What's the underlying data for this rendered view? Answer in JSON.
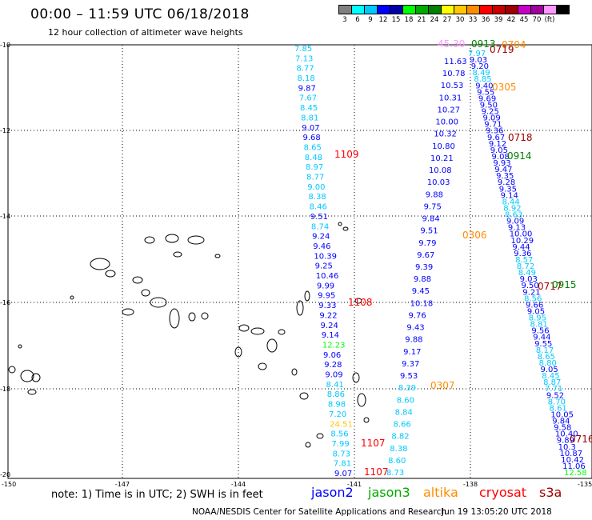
{
  "header": {
    "title": "00:00 – 11:59 UTC 06/18/2018",
    "subtitle": "12 hour collection of altimeter wave heights"
  },
  "colorbar": {
    "colors": [
      "#808080",
      "#00ffff",
      "#00c8ff",
      "#0000ff",
      "#0000aa",
      "#00ff00",
      "#00aa00",
      "#008000",
      "#ffff00",
      "#ffc800",
      "#ff8c00",
      "#ff0000",
      "#c80000",
      "#a00000",
      "#c800c8",
      "#a000a0",
      "#ff96ff",
      "#000000"
    ],
    "labels": [
      "3",
      "6",
      "9",
      "12",
      "15",
      "18",
      "21",
      "24",
      "27",
      "30",
      "33",
      "36",
      "39",
      "42",
      "45",
      "70",
      "(ft)"
    ]
  },
  "axes": {
    "lat_labels": [
      "-10",
      "-12",
      "-14",
      "-16",
      "-18",
      "-20"
    ],
    "lon_labels": [
      "-150",
      "-147",
      "-144",
      "-141",
      "-138",
      "-135"
    ],
    "lon_label_bottom_left": "-150",
    "lon_label_bottom_right": "-135"
  },
  "tracks": {
    "track_a": [
      {
        "v": "7.85",
        "c": "#00c8ff"
      },
      {
        "v": "7.13",
        "c": "#00c8ff"
      },
      {
        "v": "8.77",
        "c": "#00c8ff"
      },
      {
        "v": "8.18",
        "c": "#00c8ff"
      },
      {
        "v": "9.87",
        "c": "#0000ff"
      },
      {
        "v": "7.67",
        "c": "#00c8ff"
      },
      {
        "v": "8.45",
        "c": "#00c8ff"
      },
      {
        "v": "8.81",
        "c": "#00c8ff"
      },
      {
        "v": "9.07",
        "c": "#0000ff"
      },
      {
        "v": "9.68",
        "c": "#0000ff"
      },
      {
        "v": "8.65",
        "c": "#00c8ff"
      },
      {
        "v": "8.48",
        "c": "#00c8ff"
      },
      {
        "v": "8.97",
        "c": "#00c8ff"
      },
      {
        "v": "8.77",
        "c": "#00c8ff"
      },
      {
        "v": "9.00",
        "c": "#00c8ff"
      },
      {
        "v": "8.38",
        "c": "#00c8ff"
      },
      {
        "v": "8.46",
        "c": "#00c8ff"
      },
      {
        "v": "9.51",
        "c": "#0000ff"
      },
      {
        "v": "8.74",
        "c": "#00c8ff"
      },
      {
        "v": "9.24",
        "c": "#0000ff"
      },
      {
        "v": "9.46",
        "c": "#0000ff"
      },
      {
        "v": "10.39",
        "c": "#0000ff"
      },
      {
        "v": "9.25",
        "c": "#0000ff"
      },
      {
        "v": "10.46",
        "c": "#0000ff"
      },
      {
        "v": "9.99",
        "c": "#0000ff"
      },
      {
        "v": "9.95",
        "c": "#0000ff"
      },
      {
        "v": "9.33",
        "c": "#0000ff"
      },
      {
        "v": "9.22",
        "c": "#0000ff"
      },
      {
        "v": "9.24",
        "c": "#0000ff"
      },
      {
        "v": "9.14",
        "c": "#0000ff"
      },
      {
        "v": "12.23",
        "c": "#00ff00"
      },
      {
        "v": "9.06",
        "c": "#0000ff"
      },
      {
        "v": "9.28",
        "c": "#0000ff"
      },
      {
        "v": "9.09",
        "c": "#0000ff"
      },
      {
        "v": "8.41",
        "c": "#00c8ff"
      },
      {
        "v": "8.86",
        "c": "#00c8ff"
      },
      {
        "v": "8.98",
        "c": "#00c8ff"
      },
      {
        "v": "7.20",
        "c": "#00c8ff"
      },
      {
        "v": "24.51",
        "c": "#ffc800"
      },
      {
        "v": "8.56",
        "c": "#00c8ff"
      },
      {
        "v": "7.99",
        "c": "#00c8ff"
      },
      {
        "v": "8.73",
        "c": "#00c8ff"
      },
      {
        "v": "7.81",
        "c": "#00c8ff"
      },
      {
        "v": "9.07",
        "c": "#0000ff"
      }
    ],
    "track_b": [
      {
        "v": "11.63",
        "c": "#0000ff"
      },
      {
        "v": "10.78",
        "c": "#0000ff"
      },
      {
        "v": "10.53",
        "c": "#0000ff"
      },
      {
        "v": "10.31",
        "c": "#0000ff"
      },
      {
        "v": "10.27",
        "c": "#0000ff"
      },
      {
        "v": "10.00",
        "c": "#0000ff"
      },
      {
        "v": "10.32",
        "c": "#0000ff"
      },
      {
        "v": "10.80",
        "c": "#0000ff"
      },
      {
        "v": "10.21",
        "c": "#0000ff"
      },
      {
        "v": "10.08",
        "c": "#0000ff"
      },
      {
        "v": "10.03",
        "c": "#0000ff"
      },
      {
        "v": "9.88",
        "c": "#0000ff"
      },
      {
        "v": "9.75",
        "c": "#0000ff"
      },
      {
        "v": "9.84",
        "c": "#0000ff"
      },
      {
        "v": "9.51",
        "c": "#0000ff"
      },
      {
        "v": "9.79",
        "c": "#0000ff"
      },
      {
        "v": "9.67",
        "c": "#0000ff"
      },
      {
        "v": "9.39",
        "c": "#0000ff"
      },
      {
        "v": "9.88",
        "c": "#0000ff"
      },
      {
        "v": "9.45",
        "c": "#0000ff"
      },
      {
        "v": "10.18",
        "c": "#0000ff"
      },
      {
        "v": "9.76",
        "c": "#0000ff"
      },
      {
        "v": "9.43",
        "c": "#0000ff"
      },
      {
        "v": "9.88",
        "c": "#0000ff"
      },
      {
        "v": "9.17",
        "c": "#0000ff"
      },
      {
        "v": "9.37",
        "c": "#0000ff"
      },
      {
        "v": "9.53",
        "c": "#0000ff"
      },
      {
        "v": "8.39",
        "c": "#00c8ff"
      },
      {
        "v": "8.60",
        "c": "#00c8ff"
      },
      {
        "v": "8.84",
        "c": "#00c8ff"
      },
      {
        "v": "8.66",
        "c": "#00c8ff"
      },
      {
        "v": "8.82",
        "c": "#00c8ff"
      },
      {
        "v": "8.38",
        "c": "#00c8ff"
      },
      {
        "v": "8.60",
        "c": "#00c8ff"
      },
      {
        "v": "8.73",
        "c": "#00c8ff"
      }
    ],
    "track_c": [
      {
        "v": "7.97",
        "c": "#00c8ff"
      },
      {
        "v": "9.03",
        "c": "#0000ff"
      },
      {
        "v": "9.20",
        "c": "#0000ff"
      },
      {
        "v": "8.49",
        "c": "#00c8ff"
      },
      {
        "v": "8.85",
        "c": "#00c8ff"
      },
      {
        "v": "9.40",
        "c": "#0000ff"
      },
      {
        "v": "9.55",
        "c": "#0000ff"
      },
      {
        "v": "9.69",
        "c": "#0000ff"
      },
      {
        "v": "9.50",
        "c": "#0000ff"
      },
      {
        "v": "9.25",
        "c": "#0000ff"
      },
      {
        "v": "9.09",
        "c": "#0000ff"
      },
      {
        "v": "9.71",
        "c": "#0000ff"
      },
      {
        "v": "9.36",
        "c": "#0000ff"
      },
      {
        "v": "9.67",
        "c": "#0000ff"
      },
      {
        "v": "9.12",
        "c": "#0000ff"
      },
      {
        "v": "9.05",
        "c": "#0000ff"
      },
      {
        "v": "9.08",
        "c": "#0000ff"
      },
      {
        "v": "9.93",
        "c": "#0000ff"
      },
      {
        "v": "9.47",
        "c": "#0000ff"
      },
      {
        "v": "9.35",
        "c": "#0000ff"
      },
      {
        "v": "9.28",
        "c": "#0000ff"
      },
      {
        "v": "9.35",
        "c": "#0000ff"
      },
      {
        "v": "9.14",
        "c": "#0000ff"
      },
      {
        "v": "8.44",
        "c": "#00c8ff"
      },
      {
        "v": "8.92",
        "c": "#00c8ff"
      },
      {
        "v": "8.63",
        "c": "#00c8ff"
      },
      {
        "v": "9.09",
        "c": "#0000ff"
      },
      {
        "v": "9.13",
        "c": "#0000ff"
      },
      {
        "v": "10.00",
        "c": "#0000ff"
      },
      {
        "v": "10.29",
        "c": "#0000ff"
      },
      {
        "v": "9.44",
        "c": "#0000ff"
      },
      {
        "v": "9.36",
        "c": "#0000ff"
      },
      {
        "v": "8.57",
        "c": "#00c8ff"
      },
      {
        "v": "8.72",
        "c": "#00c8ff"
      },
      {
        "v": "8.49",
        "c": "#00c8ff"
      },
      {
        "v": "9.03",
        "c": "#0000ff"
      },
      {
        "v": "9.50",
        "c": "#0000ff"
      },
      {
        "v": "9.21",
        "c": "#0000ff"
      },
      {
        "v": "8.56",
        "c": "#00c8ff"
      },
      {
        "v": "9.66",
        "c": "#0000ff"
      },
      {
        "v": "9.05",
        "c": "#0000ff"
      },
      {
        "v": "8.95",
        "c": "#00c8ff"
      },
      {
        "v": "8.81",
        "c": "#00c8ff"
      },
      {
        "v": "9.56",
        "c": "#0000ff"
      },
      {
        "v": "9.44",
        "c": "#0000ff"
      },
      {
        "v": "9.55",
        "c": "#0000ff"
      },
      {
        "v": "8.17",
        "c": "#00c8ff"
      },
      {
        "v": "8.65",
        "c": "#00c8ff"
      },
      {
        "v": "8.80",
        "c": "#00c8ff"
      },
      {
        "v": "9.05",
        "c": "#0000ff"
      },
      {
        "v": "8.45",
        "c": "#00c8ff"
      },
      {
        "v": "8.87",
        "c": "#00c8ff"
      },
      {
        "v": "7.71",
        "c": "#00c8ff"
      },
      {
        "v": "9.52",
        "c": "#0000ff"
      },
      {
        "v": "8.70",
        "c": "#00c8ff"
      },
      {
        "v": "8.61",
        "c": "#00c8ff"
      },
      {
        "v": "10.05",
        "c": "#0000ff"
      },
      {
        "v": "9.84",
        "c": "#0000ff"
      },
      {
        "v": "9.58",
        "c": "#0000ff"
      },
      {
        "v": "10.40",
        "c": "#0000ff"
      },
      {
        "v": "9.89",
        "c": "#0000ff"
      },
      {
        "v": "10.3",
        "c": "#0000ff"
      },
      {
        "v": "10.87",
        "c": "#0000ff"
      },
      {
        "v": "10.42",
        "c": "#0000ff"
      },
      {
        "v": "11.06",
        "c": "#0000ff"
      },
      {
        "v": "12.58",
        "c": "#00ff00"
      }
    ]
  },
  "time_labels": [
    {
      "t": "1109",
      "c": "#ff0000"
    },
    {
      "t": "1108",
      "c": "#ff0000"
    },
    {
      "t": "1107",
      "c": "#ff0000"
    },
    {
      "t": "1107",
      "c": "#ff0000"
    },
    {
      "t": "0306",
      "c": "#ff8c00"
    },
    {
      "t": "0307",
      "c": "#ff8c00"
    },
    {
      "t": "0305",
      "c": "#ff8c00"
    },
    {
      "t": "0704",
      "c": "#ff8c00"
    },
    {
      "t": "0719",
      "c": "#a00000"
    },
    {
      "t": "0718",
      "c": "#a00000"
    },
    {
      "t": "0717",
      "c": "#a00000"
    },
    {
      "t": "0716",
      "c": "#a00000"
    },
    {
      "t": "0914",
      "c": "#008000"
    },
    {
      "t": "0915",
      "c": "#008000"
    },
    {
      "t": "0913",
      "c": "#008000"
    },
    {
      "t": "45.30",
      "c": "#ff96ff"
    }
  ],
  "footer": {
    "note": "note:  1) Time is in UTC; 2) SWH is in feet",
    "legend": [
      {
        "name": "jason2",
        "color": "#0000ff"
      },
      {
        "name": "jason3",
        "color": "#00aa00"
      },
      {
        "name": "altika",
        "color": "#ff8c00"
      },
      {
        "name": "cryosat",
        "color": "#ff0000"
      },
      {
        "name": "s3a",
        "color": "#a00000"
      }
    ],
    "credit": "NOAA/NESDIS Center for Satellite Applications and Research",
    "timestamp": "Jun 19 13:05:20 UTC 2018"
  }
}
